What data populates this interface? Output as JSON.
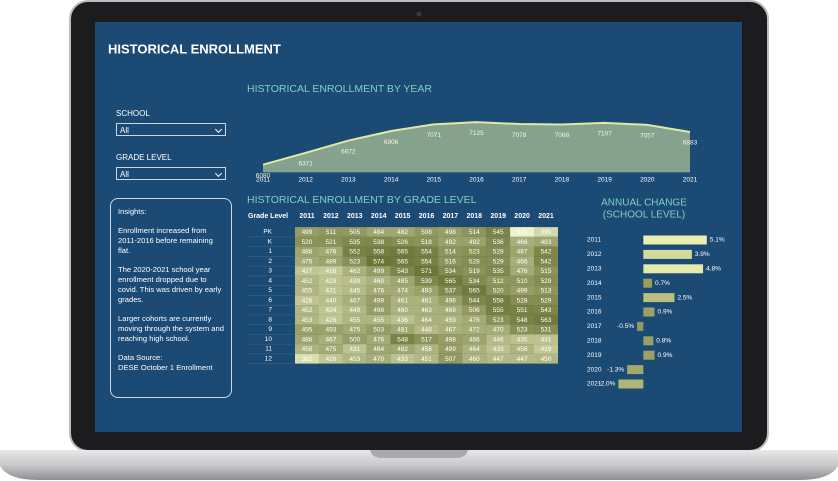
{
  "header": {
    "title": "HISTORICAL ENROLLMENT"
  },
  "filters": [
    {
      "label": "SCHOOL",
      "value": "All"
    },
    {
      "label": "GRADE LEVEL",
      "value": "All"
    }
  ],
  "insights": {
    "heading": "Insights:",
    "paragraphs": [
      "Enrollment increased from 2011-2016 before remaining flat.",
      "The 2020-2021 school year enrollment dropped due to covid. This was driven by early grades.",
      "Larger cohorts are currently moving through the system and reaching high school."
    ],
    "source_label": "Data Source:",
    "source": "DESE October 1 Enrollment"
  },
  "chart_data": [
    {
      "type": "area",
      "title": "HISTORICAL ENROLLMENT BY YEAR",
      "categories": [
        "2011",
        "2012",
        "2013",
        "2014",
        "2015",
        "2016",
        "2017",
        "2018",
        "2019",
        "2020",
        "2021"
      ],
      "values": [
        6080,
        6371,
        6672,
        6906,
        7071,
        7125,
        7078,
        7068,
        7107,
        7057,
        6883
      ],
      "ylim": [
        5900,
        7300
      ],
      "color": "#dfeaa0"
    },
    {
      "type": "heatmap",
      "title": "HISTORICAL ENROLLMENT BY GRADE LEVEL",
      "row_header": "Grade Level",
      "columns": [
        "2011",
        "2012",
        "2013",
        "2014",
        "2015",
        "2016",
        "2017",
        "2018",
        "2019",
        "2020",
        "2021"
      ],
      "rows": [
        "PK",
        "K",
        "1",
        "2",
        "3",
        "4",
        "5",
        "6",
        "7",
        "8",
        "9",
        "10",
        "11",
        "12"
      ],
      "values": [
        [
          499,
          511,
          505,
          484,
          482,
          508,
          498,
          514,
          545,
          345,
          390
        ],
        [
          520,
          521,
          535,
          538,
          526,
          518,
          492,
          492,
          536,
          466,
          483
        ],
        [
          486,
          476,
          552,
          558,
          565,
          554,
          514,
          523,
          528,
          487,
          542
        ],
        [
          475,
          489,
          523,
          574,
          565,
          554,
          516,
          528,
          529,
          466,
          542
        ],
        [
          427,
          418,
          462,
          499,
          543,
          571,
          534,
          519,
          535,
          476,
          515
        ],
        [
          452,
          429,
          439,
          460,
          485,
          539,
          565,
          534,
          512,
          510,
          529
        ],
        [
          455,
          431,
          445,
          476,
          474,
          493,
          537,
          565,
          520,
          499,
          513
        ],
        [
          426,
          440,
          467,
          499,
          461,
          461,
          496,
          544,
          558,
          528,
          529
        ],
        [
          452,
          424,
          449,
          498,
          460,
          463,
          469,
          506,
          555,
          551,
          543
        ],
        [
          453,
          426,
          455,
          455,
          436,
          464,
          459,
          476,
          523,
          548,
          563
        ],
        [
          495,
          493,
          475,
          503,
          481,
          448,
          467,
          472,
          470,
          523,
          531
        ],
        [
          486,
          467,
          500,
          476,
          548,
          517,
          498,
          486,
          446,
          435,
          431
        ],
        [
          458,
          475,
          431,
          484,
          482,
          458,
          499,
          464,
          433,
          458,
          419
        ],
        [
          382,
          426,
          453,
          470,
          433,
          451,
          507,
          460,
          447,
          447,
          450
        ]
      ],
      "colors": [
        "#eef2c6",
        "#6c7436"
      ]
    },
    {
      "type": "hbar",
      "title": [
        "ANNUAL CHANGE",
        "(SCHOOL LEVEL)"
      ],
      "categories": [
        "2011",
        "2012",
        "2013",
        "2014",
        "2015",
        "2016",
        "2017",
        "2018",
        "2019",
        "2020",
        "2021"
      ],
      "values": [
        5.1,
        3.9,
        4.8,
        0.7,
        2.5,
        0.9,
        -0.5,
        0.8,
        0.9,
        -1.3,
        -2.0
      ],
      "value_labels": [
        "5.1%",
        "3.9%",
        "4.8%",
        "0.7%",
        "2.5%",
        "0.9%",
        "-0.5%",
        "0.8%",
        "0.9%",
        "-1.3%",
        "-2.0%"
      ],
      "xlim": [
        -3,
        6
      ],
      "colors": [
        "#8b9152",
        "#e9f0b0"
      ]
    }
  ]
}
